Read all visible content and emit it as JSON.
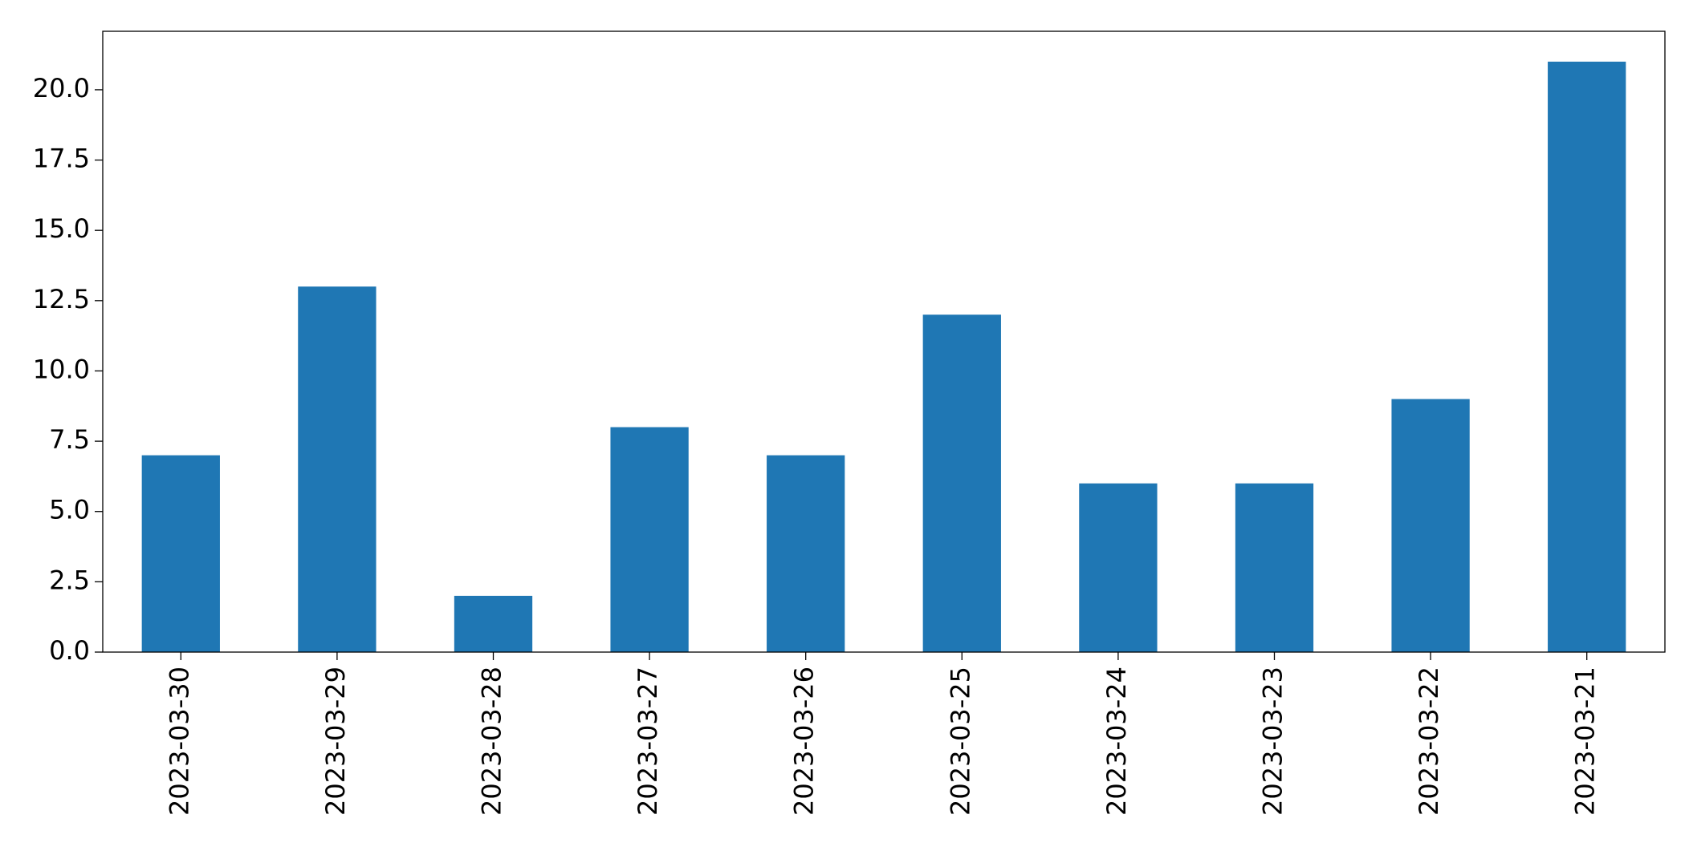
{
  "chart_data": {
    "type": "bar",
    "categories": [
      "2023-03-30",
      "2023-03-29",
      "2023-03-28",
      "2023-03-27",
      "2023-03-26",
      "2023-03-25",
      "2023-03-24",
      "2023-03-23",
      "2023-03-22",
      "2023-03-21"
    ],
    "values": [
      7,
      13,
      2,
      8,
      7,
      12,
      6,
      6,
      9,
      21
    ],
    "color": "#1f77b4",
    "ylim": [
      0,
      22.08
    ],
    "yticks": [
      {
        "value": 0,
        "label": "0.0"
      },
      {
        "value": 2.5,
        "label": "2.5"
      },
      {
        "value": 5,
        "label": "5.0"
      },
      {
        "value": 7.5,
        "label": "7.5"
      },
      {
        "value": 10,
        "label": "10.0"
      },
      {
        "value": 12.5,
        "label": "12.5"
      },
      {
        "value": 15,
        "label": "15.0"
      },
      {
        "value": 17.5,
        "label": "17.5"
      },
      {
        "value": 20,
        "label": "20.0"
      }
    ],
    "grid": false
  }
}
